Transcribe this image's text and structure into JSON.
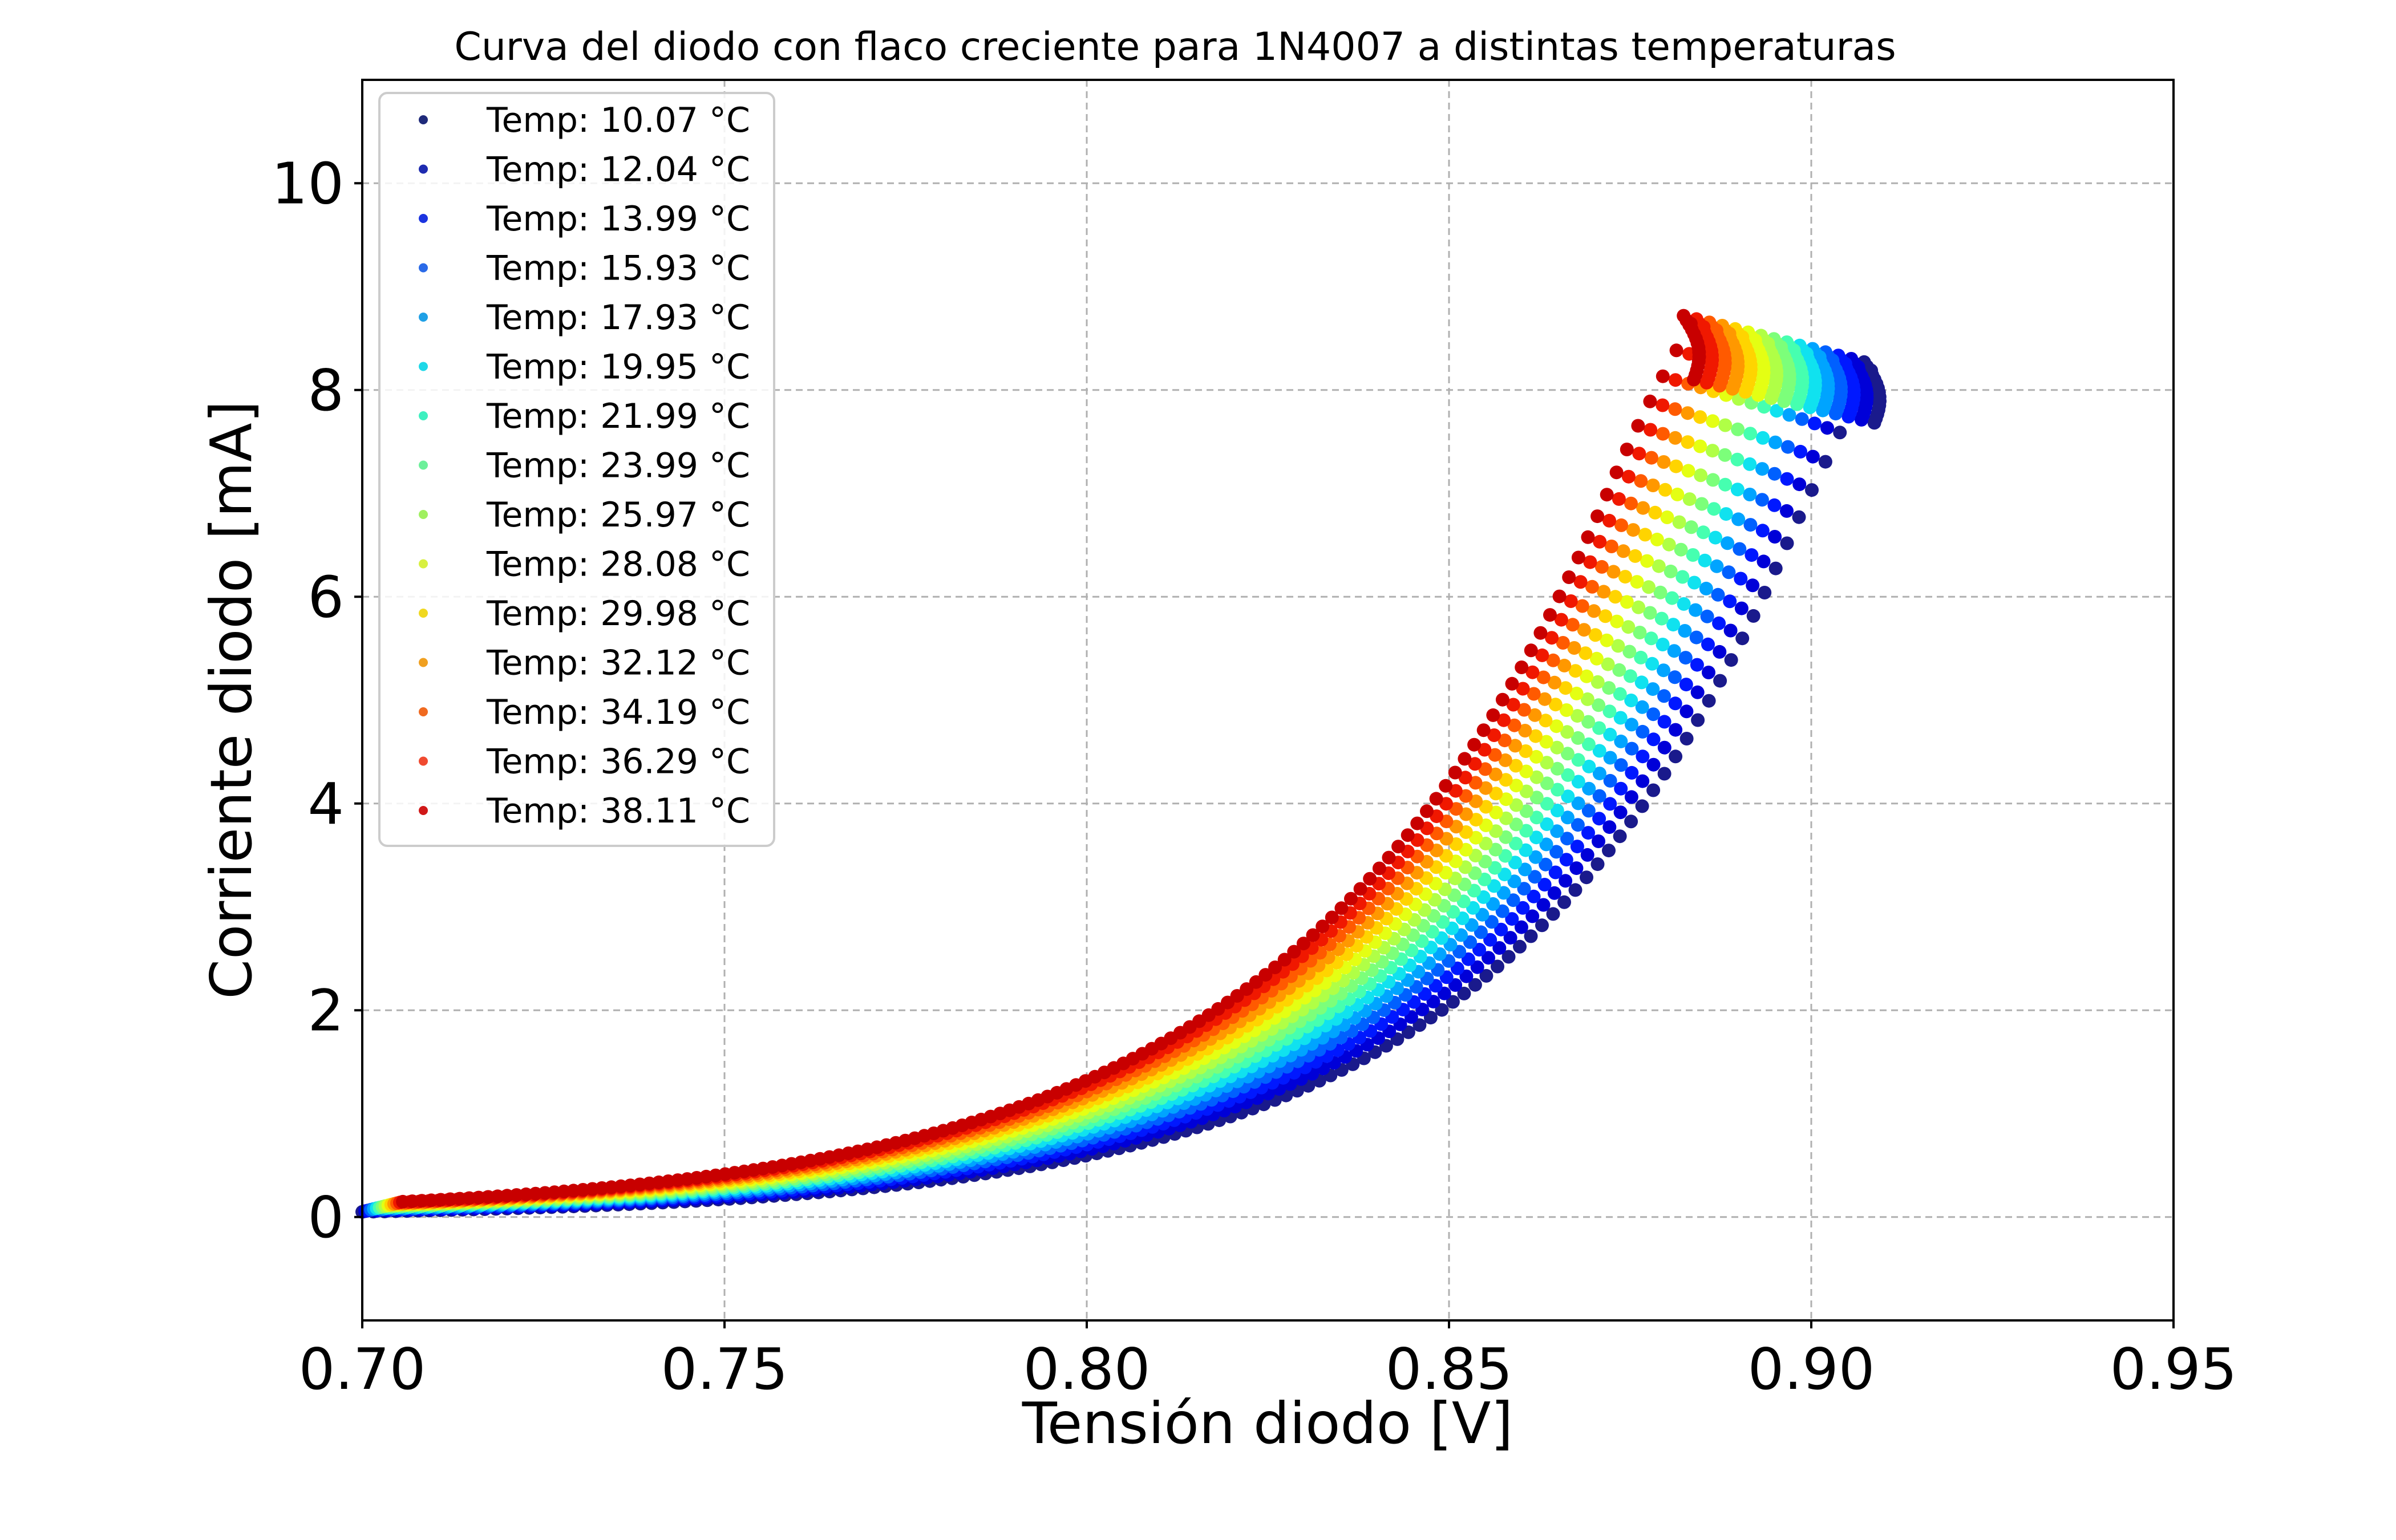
{
  "chart_data": {
    "type": "scatter",
    "title": "Curva del diodo con flaco creciente para 1N4007 a distintas temperaturas",
    "xlabel": "Tensión diodo [V]",
    "ylabel": "Corriente diodo [mA]",
    "xlim": [
      0.7,
      0.95
    ],
    "ylim": [
      -1,
      11
    ],
    "xticks": [
      "0.70",
      "0.75",
      "0.80",
      "0.85",
      "0.90",
      "0.95"
    ],
    "xtick_values": [
      0.7,
      0.75,
      0.8,
      0.85,
      0.9,
      0.95
    ],
    "yticks": [
      "0",
      "2",
      "4",
      "6",
      "8",
      "10"
    ],
    "ytick_values": [
      0,
      2,
      4,
      6,
      8,
      10
    ],
    "grid": true,
    "legend_position": "top-left",
    "curve_model": "diode",
    "x_end_base": 0.9095,
    "x_end_step": -0.00178,
    "y_end_base": 8.22,
    "y_end_step": 0.032,
    "series": [
      {
        "name": "Temp:  10.07 °C",
        "temp": 10.07,
        "color": "#1a1a8c",
        "legend_color": "#1f2a7a"
      },
      {
        "name": "Temp:  12.04 °C",
        "temp": 12.04,
        "color": "#0000d8",
        "legend_color": "#1e2bb0"
      },
      {
        "name": "Temp:  13.99 °C",
        "temp": 13.99,
        "color": "#0018ff",
        "legend_color": "#1b34e0"
      },
      {
        "name": "Temp:  15.93 °C",
        "temp": 15.93,
        "color": "#0060ff",
        "legend_color": "#2a6ae8"
      },
      {
        "name": "Temp:  17.93 °C",
        "temp": 17.93,
        "color": "#00a4ff",
        "legend_color": "#1fa0e6"
      },
      {
        "name": "Temp:  19.95 °C",
        "temp": 19.95,
        "color": "#10e2ef",
        "legend_color": "#1ed8e8"
      },
      {
        "name": "Temp:  21.99 °C",
        "temp": 21.99,
        "color": "#46ffb0",
        "legend_color": "#3ef0c0"
      },
      {
        "name": "Temp:  23.99 °C",
        "temp": 23.99,
        "color": "#7cff7a",
        "legend_color": "#6cf09a"
      },
      {
        "name": "Temp:  25.97 °C",
        "temp": 25.97,
        "color": "#b0ff46",
        "legend_color": "#a0f060"
      },
      {
        "name": "Temp:  28.08 °C",
        "temp": 28.08,
        "color": "#e4ff13",
        "legend_color": "#d8f040"
      },
      {
        "name": "Temp:  29.98 °C",
        "temp": 29.98,
        "color": "#ffd400",
        "legend_color": "#f0d820"
      },
      {
        "name": "Temp:  32.12 °C",
        "temp": 32.12,
        "color": "#ff9800",
        "legend_color": "#f0a020"
      },
      {
        "name": "Temp:  34.19 °C",
        "temp": 34.19,
        "color": "#ff5a00",
        "legend_color": "#f06a20"
      },
      {
        "name": "Temp:  36.29 °C",
        "temp": 36.29,
        "color": "#f01800",
        "legend_color": "#f04a30"
      },
      {
        "name": "Temp:  38.11 °C",
        "temp": 38.11,
        "color": "#c80000",
        "legend_color": "#d01818"
      }
    ]
  }
}
